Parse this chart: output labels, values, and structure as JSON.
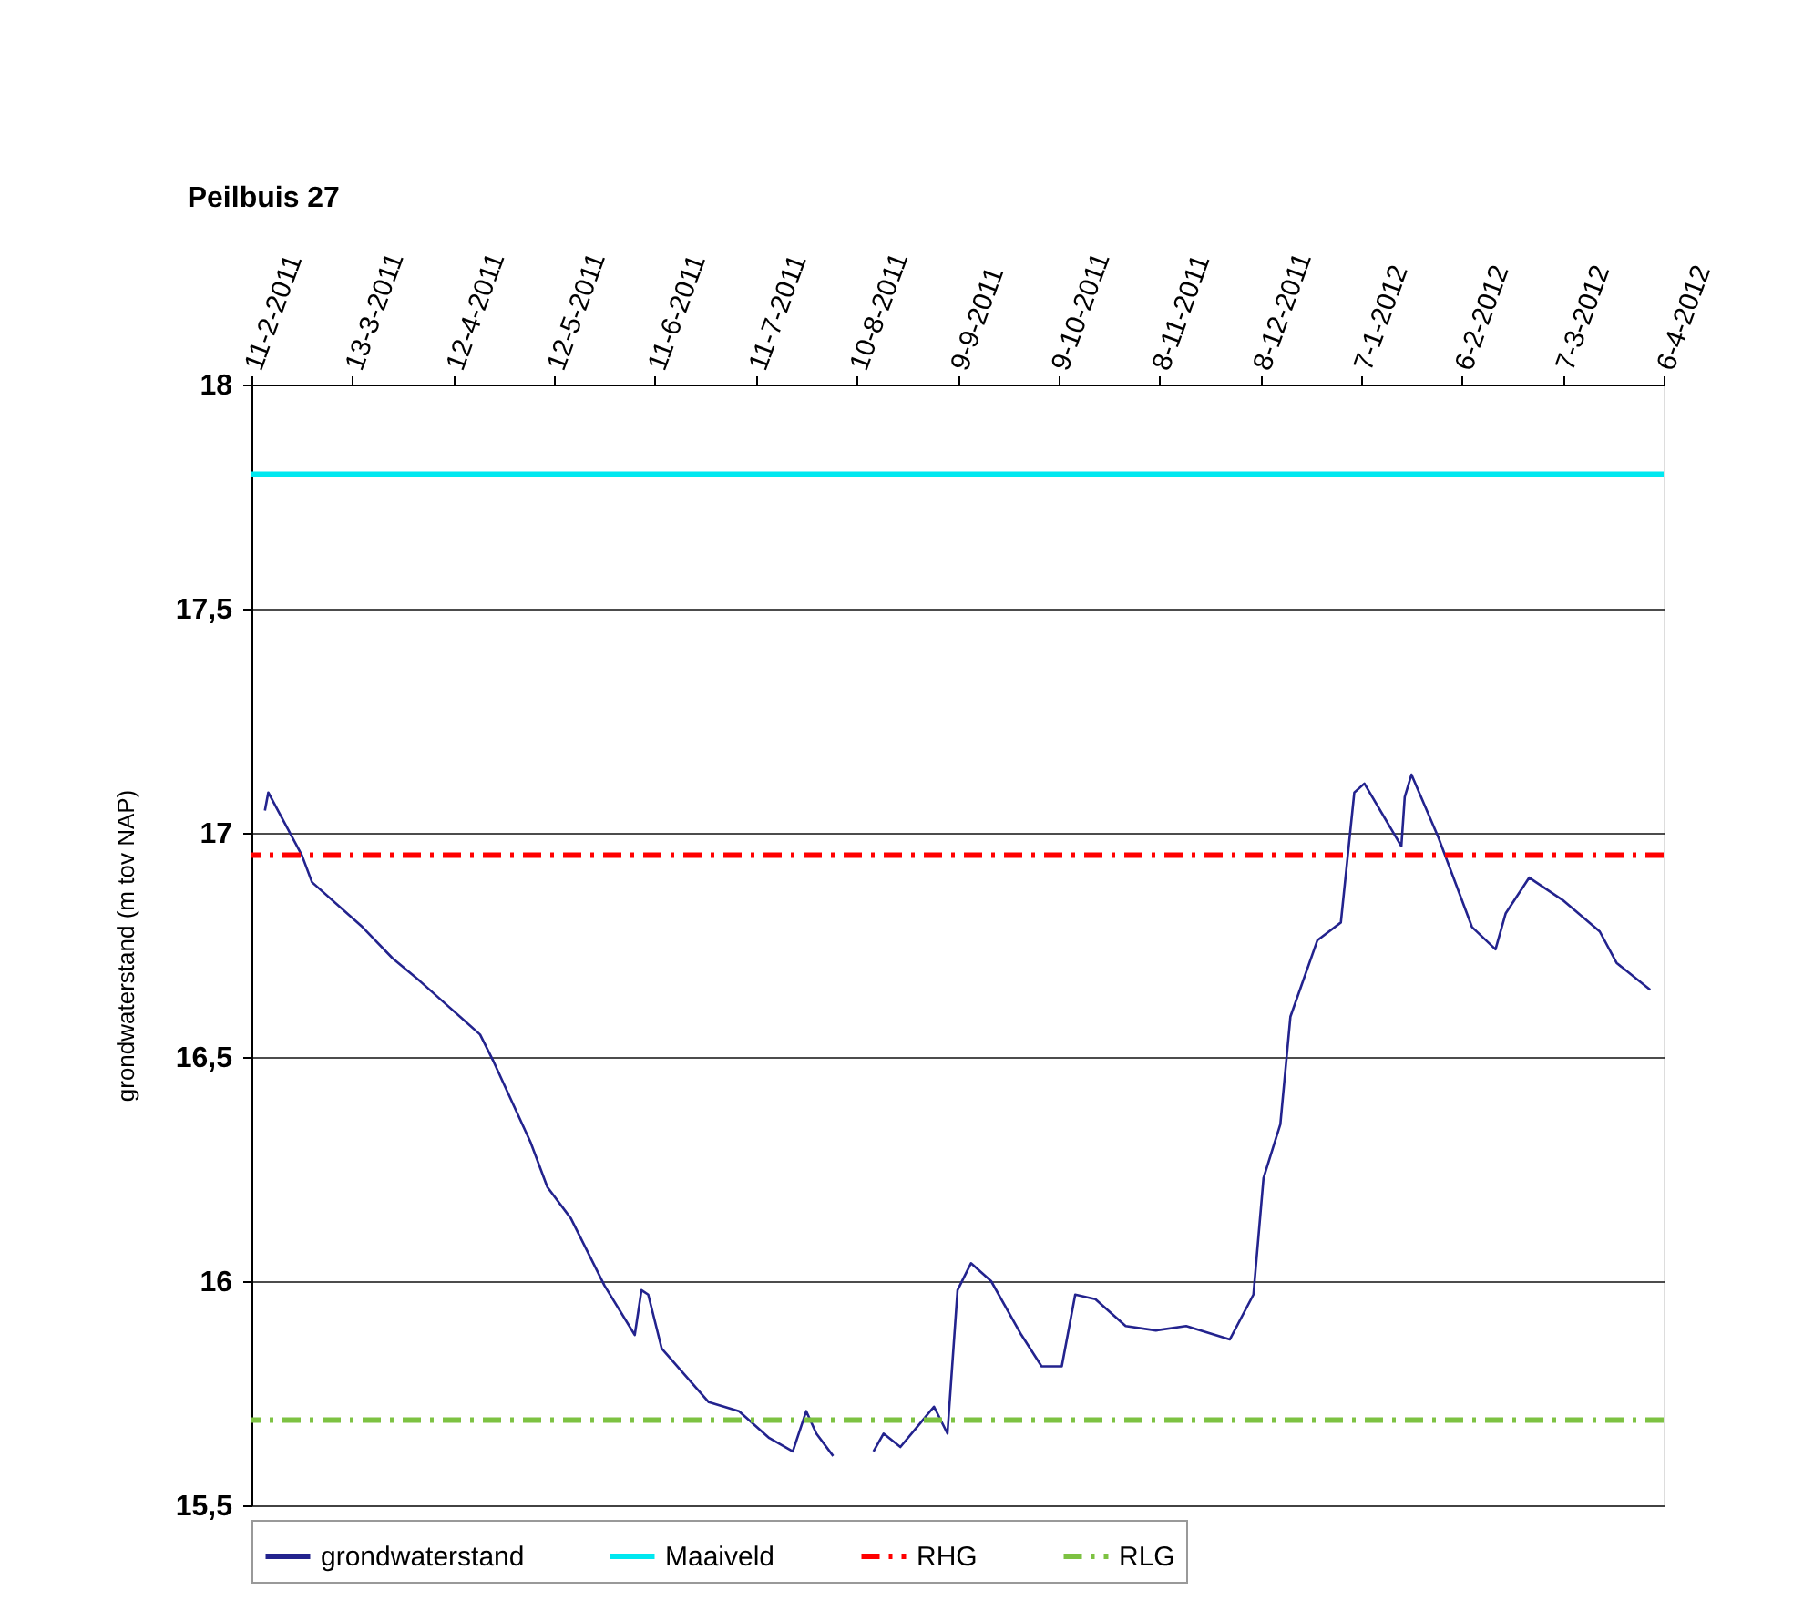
{
  "chart_data": {
    "type": "line",
    "title": "Peilbuis 27",
    "ylabel": "grondwaterstand (m tov NAP)",
    "xlim": [
      "2011-02-11",
      "2012-04-06"
    ],
    "xticks": [
      {
        "value": "2011-02-11",
        "label": "11-2-2011"
      },
      {
        "value": "2011-03-13",
        "label": "13-3-2011"
      },
      {
        "value": "2011-04-12",
        "label": "12-4-2011"
      },
      {
        "value": "2011-05-12",
        "label": "12-5-2011"
      },
      {
        "value": "2011-06-11",
        "label": "11-6-2011"
      },
      {
        "value": "2011-07-11",
        "label": "11-7-2011"
      },
      {
        "value": "2011-08-10",
        "label": "10-8-2011"
      },
      {
        "value": "2011-09-09",
        "label": "9-9-2011"
      },
      {
        "value": "2011-10-09",
        "label": "9-10-2011"
      },
      {
        "value": "2011-11-08",
        "label": "8-11-2011"
      },
      {
        "value": "2011-12-08",
        "label": "8-12-2011"
      },
      {
        "value": "2012-01-07",
        "label": "7-1-2012"
      },
      {
        "value": "2012-02-06",
        "label": "6-2-2012"
      },
      {
        "value": "2012-03-07",
        "label": "7-3-2012"
      },
      {
        "value": "2012-04-06",
        "label": "6-4-2012"
      }
    ],
    "ylim": [
      15.5,
      18
    ],
    "yticks": [
      {
        "value": 15.5,
        "label": "15,5"
      },
      16,
      {
        "value": 16.5,
        "label": "16,5"
      },
      17,
      {
        "value": 17.5,
        "label": "17,5"
      },
      18
    ],
    "grid": "y",
    "legend": "bottom",
    "marker": "none",
    "line_style": "solid",
    "series": [
      {
        "name": "grondwaterstand",
        "color": "#23238e",
        "x": [
          "2011-02-15",
          "2011-02-16",
          "2011-02-26",
          "2011-03-01",
          "2011-03-16",
          "2011-03-25",
          "2011-04-02",
          "2011-04-11",
          "2011-04-20",
          "2011-04-24",
          "2011-05-05",
          "2011-05-10",
          "2011-05-17",
          "2011-05-27",
          "2011-06-05",
          "2011-06-07",
          "2011-06-09",
          "2011-06-13",
          "2011-06-27",
          "2011-07-06",
          "2011-07-15",
          "2011-07-22",
          "2011-07-26",
          "2011-07-29",
          "2011-08-03",
          "2011-08-09",
          "2011-08-15",
          "2011-08-18",
          "2011-08-23",
          "2011-09-02",
          "2011-09-06",
          "2011-09-09",
          "2011-09-13",
          "2011-09-19",
          "2011-09-28",
          "2011-10-04",
          "2011-10-10",
          "2011-10-14",
          "2011-10-20",
          "2011-10-29",
          "2011-11-07",
          "2011-11-16",
          "2011-11-29",
          "2011-12-06",
          "2011-12-09",
          "2011-12-14",
          "2011-12-17",
          "2011-12-25",
          "2012-01-01",
          "2012-01-05",
          "2012-01-08",
          "2012-01-19",
          "2012-01-20",
          "2012-01-22",
          "2012-01-30",
          "2012-02-09",
          "2012-02-16",
          "2012-02-19",
          "2012-02-26",
          "2012-03-07",
          "2012-03-18",
          "2012-03-23",
          "2012-04-02"
        ],
        "values": [
          17.05,
          17.09,
          16.95,
          16.89,
          16.79,
          16.72,
          16.67,
          16.61,
          16.55,
          16.49,
          16.31,
          16.21,
          16.14,
          15.99,
          15.88,
          15.98,
          15.97,
          15.85,
          15.73,
          15.71,
          15.65,
          15.62,
          15.71,
          15.66,
          15.61,
          null,
          15.62,
          15.66,
          15.63,
          15.72,
          15.66,
          15.98,
          16.04,
          16.0,
          15.88,
          15.81,
          15.81,
          15.97,
          15.96,
          15.9,
          15.89,
          15.9,
          15.87,
          15.97,
          16.23,
          16.35,
          16.59,
          16.76,
          16.8,
          17.09,
          17.11,
          16.97,
          17.08,
          17.13,
          16.99,
          16.79,
          16.74,
          16.82,
          16.9,
          16.85,
          16.78,
          16.71,
          16.65
        ]
      }
    ],
    "ref_lines": [
      {
        "axis": "y",
        "value": 17.8,
        "label": "Maaiveld",
        "color": "#00e8f0",
        "line_style": "solid"
      },
      {
        "axis": "y",
        "value": 16.95,
        "label": "RHG",
        "color": "#ff0000",
        "line_style": "dashed"
      },
      {
        "axis": "y",
        "value": 15.69,
        "label": "RLG",
        "color": "#7dc242",
        "line_style": "dashed"
      }
    ]
  }
}
